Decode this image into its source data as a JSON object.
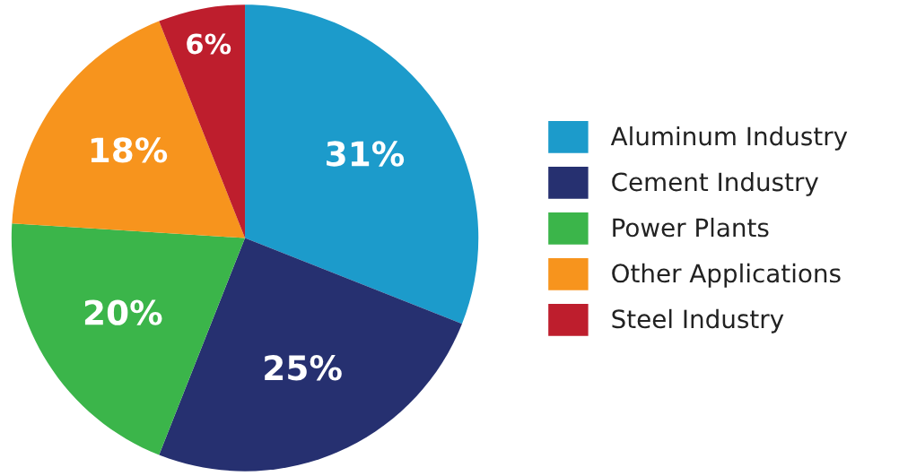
{
  "chart_data": {
    "type": "pie",
    "categories": [
      "Aluminum Industry",
      "Cement Industry",
      "Power Plants",
      "Other Applications",
      "Steel Industry"
    ],
    "values": [
      31,
      25,
      20,
      18,
      6
    ],
    "colors": [
      "#1c9bcb",
      "#263070",
      "#3bb54a",
      "#f7941d",
      "#be1e2d"
    ],
    "value_labels": [
      "31%",
      "25%",
      "20%",
      "18%",
      "6%"
    ],
    "legend": "right"
  }
}
